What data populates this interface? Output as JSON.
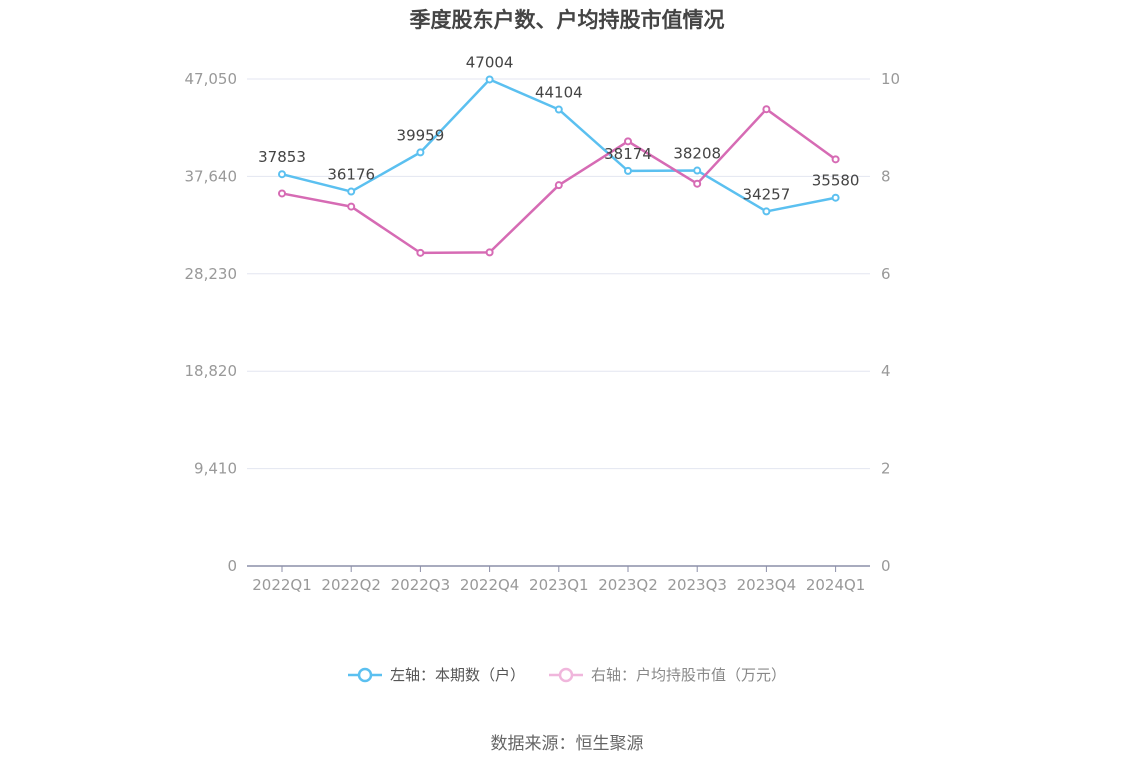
{
  "chart_data": {
    "type": "line",
    "title": "季度股东户数、户均持股市值情况",
    "categories": [
      "2022Q1",
      "2022Q2",
      "2022Q3",
      "2022Q4",
      "2023Q1",
      "2023Q2",
      "2023Q3",
      "2023Q4",
      "2024Q1"
    ],
    "left_axis": {
      "ticks": [
        "0",
        "9,410",
        "18,820",
        "28,230",
        "37,640",
        "47,050"
      ],
      "ylim": [
        0,
        47050
      ]
    },
    "right_axis": {
      "ticks": [
        "0",
        "2",
        "4",
        "6",
        "8",
        "10"
      ],
      "ylim": [
        0,
        10
      ]
    },
    "grid": true,
    "legend_position": "bottom",
    "series": [
      {
        "name": "左轴：本期数（户）",
        "axis": "left",
        "color": "#5bc0f0",
        "values": [
          37853,
          36176,
          39959,
          47004,
          44104,
          38174,
          38208,
          34257,
          35580
        ],
        "labels": [
          "37853",
          "36176",
          "39959",
          "47004",
          "44104",
          "38174",
          "38208",
          "34257",
          "35580"
        ]
      },
      {
        "name": "右轴：户均持股市值（万元）",
        "axis": "right",
        "color": "#d66bb4",
        "values": [
          7.65,
          7.38,
          6.43,
          6.44,
          7.82,
          8.72,
          7.85,
          9.38,
          8.35
        ]
      }
    ]
  },
  "source_text": "数据来源：恒生聚源"
}
